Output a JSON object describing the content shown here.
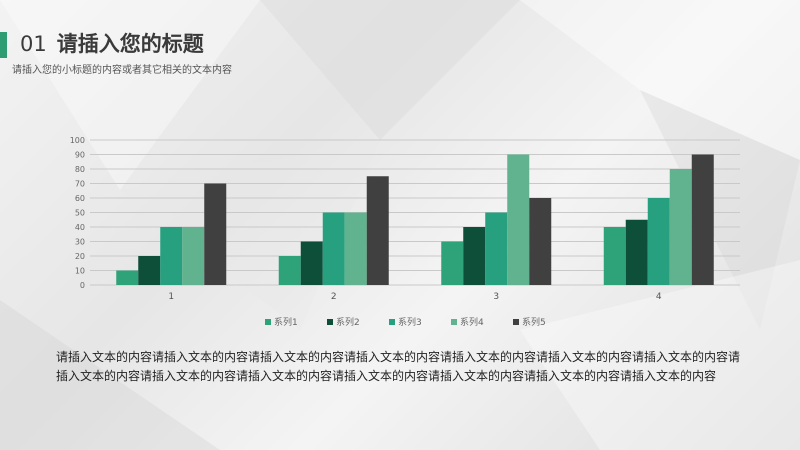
{
  "header": {
    "number": "01",
    "title": "请插入您的标题",
    "subtitle": "请插入您的小标题的内容或者其它相关的文本内容"
  },
  "colors": {
    "accent": "#2e9e72"
  },
  "chart_data": {
    "type": "bar",
    "categories": [
      "1",
      "2",
      "3",
      "4"
    ],
    "ylim": [
      0,
      100
    ],
    "yticks": [
      0,
      10,
      20,
      30,
      40,
      50,
      60,
      70,
      80,
      90,
      100
    ],
    "grid": true,
    "legend_position": "bottom",
    "series": [
      {
        "name": "系列1",
        "color": "#2ea37a",
        "values": [
          10,
          20,
          30,
          40
        ]
      },
      {
        "name": "系列2",
        "color": "#0e4f3a",
        "values": [
          20,
          30,
          40,
          45
        ]
      },
      {
        "name": "系列3",
        "color": "#27a07f",
        "values": [
          40,
          50,
          50,
          60
        ]
      },
      {
        "name": "系列4",
        "color": "#60b38e",
        "values": [
          40,
          50,
          90,
          80
        ]
      },
      {
        "name": "系列5",
        "color": "#404040",
        "values": [
          70,
          75,
          60,
          90
        ]
      }
    ]
  },
  "body": {
    "text": "请插入文本的内容请插入文本的内容请插入文本的内容请插入文本的内容请插入文本的内容请插入文本的内容请插入文本的内容请插入文本的内容请插入文本的内容请插入文本的内容请插入文本的内容请插入文本的内容请插入文本的内容请插入文本的内容"
  }
}
